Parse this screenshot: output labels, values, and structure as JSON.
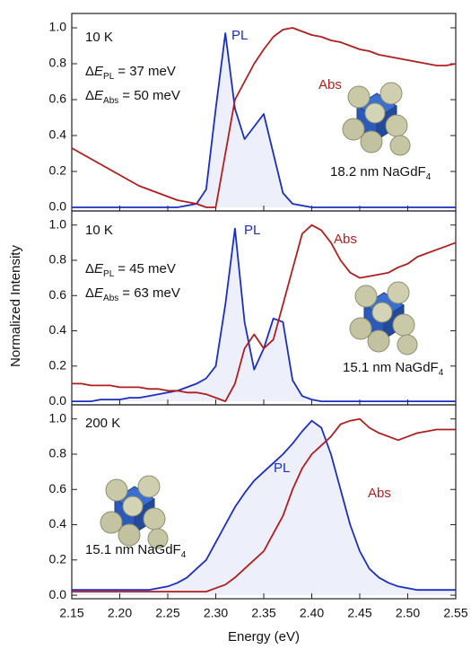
{
  "chart_data": [
    {
      "type": "line",
      "x": [
        2.15,
        2.16,
        2.17,
        2.18,
        2.19,
        2.2,
        2.21,
        2.22,
        2.23,
        2.24,
        2.25,
        2.26,
        2.27,
        2.28,
        2.29,
        2.3,
        2.31,
        2.32,
        2.33,
        2.34,
        2.35,
        2.36,
        2.37,
        2.38,
        2.39,
        2.4,
        2.41,
        2.42,
        2.43,
        2.44,
        2.45,
        2.46,
        2.47,
        2.48,
        2.49,
        2.5,
        2.51,
        2.52,
        2.53,
        2.54,
        2.55
      ],
      "series": [
        {
          "name": "PL",
          "color": "#1a2fc0",
          "values": [
            0,
            0,
            0,
            0,
            0,
            0,
            0,
            0,
            0,
            0,
            0,
            0,
            0.01,
            0.02,
            0.1,
            0.55,
            0.97,
            0.55,
            0.38,
            0.45,
            0.52,
            0.3,
            0.08,
            0.02,
            0.01,
            0,
            0,
            0,
            0,
            0,
            0,
            0,
            0,
            0,
            0,
            0,
            0,
            0,
            0,
            0,
            0
          ]
        },
        {
          "name": "Abs",
          "color": "#b01e1e",
          "values": [
            0.33,
            0.3,
            0.27,
            0.24,
            0.21,
            0.18,
            0.15,
            0.12,
            0.1,
            0.08,
            0.06,
            0.04,
            0.03,
            0.02,
            0,
            0,
            0.3,
            0.6,
            0.7,
            0.8,
            0.88,
            0.95,
            0.99,
            1.0,
            0.98,
            0.96,
            0.95,
            0.93,
            0.92,
            0.9,
            0.88,
            0.87,
            0.85,
            0.84,
            0.83,
            0.82,
            0.81,
            0.8,
            0.79,
            0.79,
            0.8
          ]
        }
      ],
      "xlim": [
        2.15,
        2.55
      ],
      "ylim": [
        -0.02,
        1.08
      ],
      "yticks": [
        {
          "value": 0,
          "label": "0.0"
        },
        0.2,
        0.4,
        0.6,
        0.8,
        {
          "value": 1,
          "label": "1.0"
        }
      ],
      "temperature": "10 K",
      "delta_pl": {
        "prefix": "Δ",
        "symbol": "E",
        "subscript": "PL",
        "text": "= 37 meV"
      },
      "delta_abs": {
        "prefix": "Δ",
        "symbol": "E",
        "subscript": "Abs",
        "text": "= 50 meV"
      },
      "sample": {
        "text": "18.2 nm NaGdF",
        "subscript": "4"
      }
    },
    {
      "type": "line",
      "x": [
        2.15,
        2.16,
        2.17,
        2.18,
        2.19,
        2.2,
        2.21,
        2.22,
        2.23,
        2.24,
        2.25,
        2.26,
        2.27,
        2.28,
        2.29,
        2.3,
        2.31,
        2.32,
        2.33,
        2.34,
        2.35,
        2.36,
        2.37,
        2.38,
        2.39,
        2.4,
        2.41,
        2.42,
        2.43,
        2.44,
        2.45,
        2.46,
        2.47,
        2.48,
        2.49,
        2.5,
        2.51,
        2.52,
        2.53,
        2.54,
        2.55
      ],
      "series": [
        {
          "name": "PL",
          "color": "#1a2fc0",
          "values": [
            0,
            0,
            0,
            0.01,
            0.01,
            0.01,
            0.02,
            0.02,
            0.03,
            0.04,
            0.05,
            0.06,
            0.08,
            0.1,
            0.13,
            0.2,
            0.55,
            0.98,
            0.45,
            0.18,
            0.3,
            0.47,
            0.45,
            0.12,
            0.03,
            0.01,
            0,
            0,
            0,
            0,
            0,
            0,
            0,
            0,
            0,
            0,
            0,
            0,
            0,
            0,
            0
          ]
        },
        {
          "name": "Abs",
          "color": "#b01e1e",
          "values": [
            0.1,
            0.1,
            0.09,
            0.09,
            0.09,
            0.08,
            0.08,
            0.08,
            0.07,
            0.07,
            0.06,
            0.06,
            0.05,
            0.05,
            0.04,
            0.02,
            0,
            0.1,
            0.3,
            0.38,
            0.3,
            0.35,
            0.55,
            0.75,
            0.95,
            1.0,
            0.97,
            0.9,
            0.8,
            0.73,
            0.7,
            0.71,
            0.72,
            0.73,
            0.76,
            0.78,
            0.82,
            0.84,
            0.86,
            0.88,
            0.9
          ]
        }
      ],
      "xlim": [
        2.15,
        2.55
      ],
      "ylim": [
        -0.02,
        1.08
      ],
      "yticks": [
        {
          "value": 0,
          "label": "0.0"
        },
        0.2,
        0.4,
        0.6,
        0.8,
        {
          "value": 1,
          "label": "1.0"
        }
      ],
      "ylabel": "Normalized Intensity",
      "temperature": "10 K",
      "delta_pl": {
        "prefix": "Δ",
        "symbol": "E",
        "subscript": "PL",
        "text": "= 45 meV"
      },
      "delta_abs": {
        "prefix": "Δ",
        "symbol": "E",
        "subscript": "Abs",
        "text": "= 63 meV"
      },
      "sample": {
        "text": "15.1 nm NaGdF",
        "subscript": "4"
      }
    },
    {
      "type": "line",
      "x": [
        2.15,
        2.16,
        2.17,
        2.18,
        2.19,
        2.2,
        2.21,
        2.22,
        2.23,
        2.24,
        2.25,
        2.26,
        2.27,
        2.28,
        2.29,
        2.3,
        2.31,
        2.32,
        2.33,
        2.34,
        2.35,
        2.36,
        2.37,
        2.38,
        2.39,
        2.4,
        2.41,
        2.42,
        2.43,
        2.44,
        2.45,
        2.46,
        2.47,
        2.48,
        2.49,
        2.5,
        2.51,
        2.52,
        2.53,
        2.54,
        2.55
      ],
      "series": [
        {
          "name": "PL",
          "color": "#1a2fc0",
          "values": [
            0.03,
            0.03,
            0.03,
            0.03,
            0.03,
            0.03,
            0.03,
            0.03,
            0.03,
            0.04,
            0.05,
            0.07,
            0.1,
            0.15,
            0.2,
            0.3,
            0.4,
            0.5,
            0.58,
            0.65,
            0.7,
            0.75,
            0.8,
            0.86,
            0.93,
            0.99,
            0.95,
            0.8,
            0.6,
            0.4,
            0.25,
            0.15,
            0.1,
            0.07,
            0.05,
            0.04,
            0.03,
            0.03,
            0.03,
            0.03,
            0.03
          ]
        },
        {
          "name": "Abs",
          "color": "#b01e1e",
          "values": [
            0.02,
            0.02,
            0.02,
            0.02,
            0.02,
            0.02,
            0.02,
            0.02,
            0.02,
            0.02,
            0.02,
            0.02,
            0.02,
            0.02,
            0.02,
            0.04,
            0.06,
            0.1,
            0.15,
            0.2,
            0.25,
            0.35,
            0.45,
            0.6,
            0.72,
            0.8,
            0.85,
            0.9,
            0.97,
            0.99,
            1.0,
            0.95,
            0.92,
            0.9,
            0.88,
            0.9,
            0.92,
            0.93,
            0.94,
            0.94,
            0.94
          ]
        }
      ],
      "xlim": [
        2.15,
        2.55
      ],
      "ylim": [
        -0.02,
        1.08
      ],
      "yticks": [
        {
          "value": 0,
          "label": "0.0"
        },
        0.2,
        0.4,
        0.6,
        0.8,
        {
          "value": 1,
          "label": "1.0"
        }
      ],
      "xticks": [
        2.15,
        {
          "value": 2.2,
          "label": "2.20"
        },
        2.25,
        {
          "value": 2.3,
          "label": "2.30"
        },
        2.35,
        {
          "value": 2.4,
          "label": "2.40"
        },
        2.45,
        {
          "value": 2.5,
          "label": "2.50"
        },
        2.55
      ],
      "xlabel": "Energy (eV)",
      "temperature": "200 K",
      "sample": {
        "text": "15.1 nm NaGdF",
        "subscript": "4"
      }
    }
  ]
}
